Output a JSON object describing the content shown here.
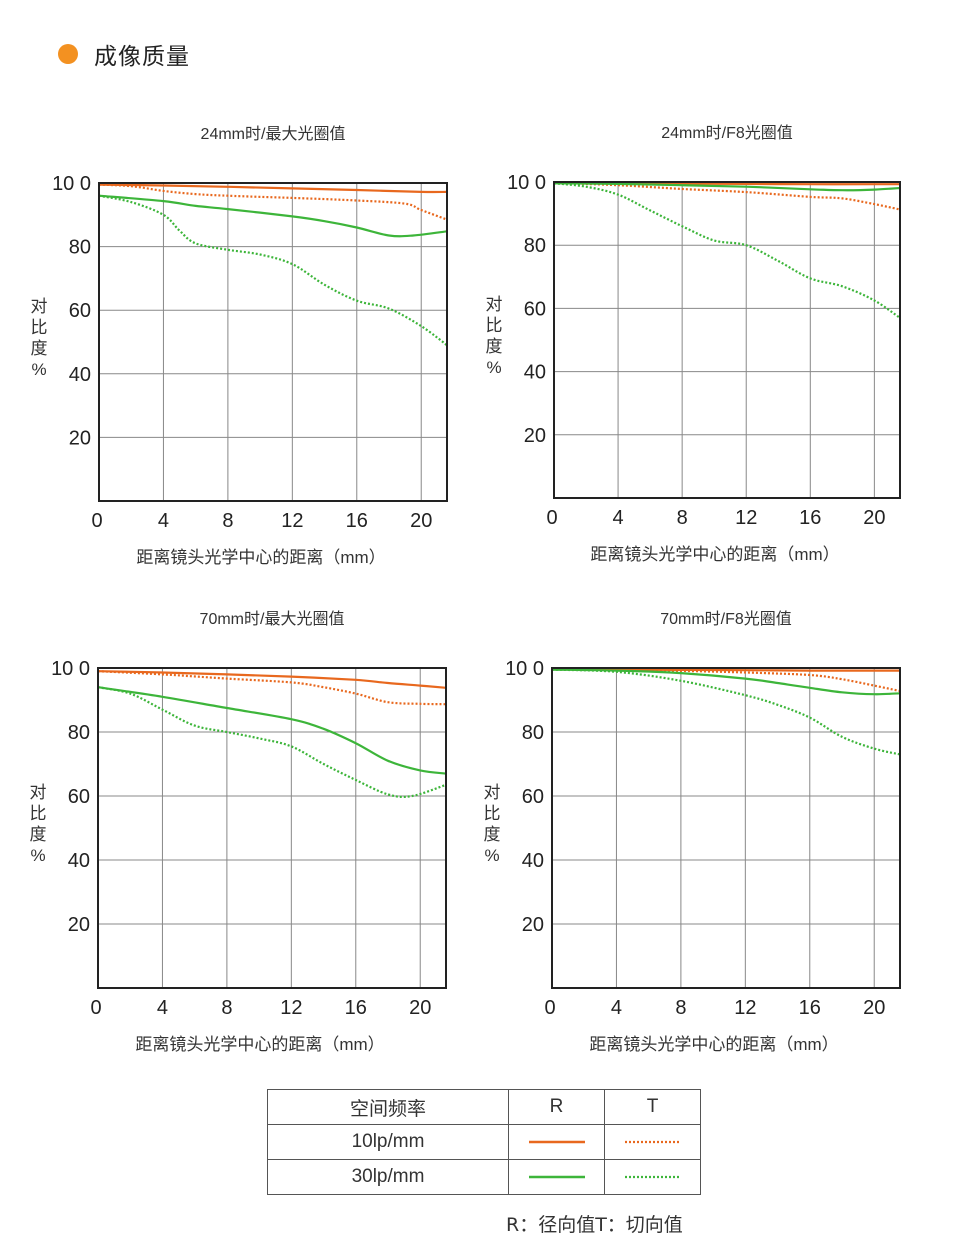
{
  "section": {
    "title": "成像质量"
  },
  "colors": {
    "dot": "#f39121",
    "line_10lp": "#e8681e",
    "line_30lp": "#3db53a",
    "grid": "#888888",
    "frame": "#222222"
  },
  "chart_data": [
    {
      "type": "line",
      "title": "24mm时/最大光圈值",
      "xlabel": "距离镜头光学中心的距离（mm）",
      "ylabel": "对比度%",
      "xlim": [
        0,
        21.6
      ],
      "ylim": [
        0,
        100
      ],
      "x_ticks": [
        0,
        4,
        8,
        12,
        16,
        20
      ],
      "y_ticks": [
        20,
        40,
        60,
        80,
        100
      ],
      "y_tick_labels": [
        "20",
        "40",
        "60",
        "80",
        "10 0"
      ],
      "grid": true,
      "series": [
        {
          "freq": "10lp/mm",
          "dir": "R",
          "points": [
            [
              0,
              99.5
            ],
            [
              4,
              99.2
            ],
            [
              8,
              98.8
            ],
            [
              12,
              98.3
            ],
            [
              16,
              97.8
            ],
            [
              20,
              97.2
            ],
            [
              21.6,
              97.2
            ]
          ]
        },
        {
          "freq": "10lp/mm",
          "dir": "T",
          "points": [
            [
              0,
              99.5
            ],
            [
              2,
              99
            ],
            [
              4,
              97.5
            ],
            [
              6,
              96.5
            ],
            [
              8,
              96
            ],
            [
              12,
              95.3
            ],
            [
              16,
              94.5
            ],
            [
              19,
              93.5
            ],
            [
              20,
              91.5
            ],
            [
              21.6,
              88.5
            ]
          ]
        },
        {
          "freq": "30lp/mm",
          "dir": "R",
          "points": [
            [
              0,
              96
            ],
            [
              4,
              94.3
            ],
            [
              6,
              92.8
            ],
            [
              8,
              91.8
            ],
            [
              12,
              89.5
            ],
            [
              14,
              88
            ],
            [
              16,
              86
            ],
            [
              18,
              83.5
            ],
            [
              19.5,
              83.5
            ],
            [
              21.6,
              84.8
            ]
          ]
        },
        {
          "freq": "30lp/mm",
          "dir": "T",
          "points": [
            [
              0,
              96
            ],
            [
              2,
              94
            ],
            [
              4,
              90
            ],
            [
              5,
              85
            ],
            [
              6,
              81
            ],
            [
              8,
              79
            ],
            [
              10,
              77.5
            ],
            [
              12,
              74.5
            ],
            [
              14,
              68
            ],
            [
              16,
              63
            ],
            [
              18,
              60.5
            ],
            [
              20,
              55
            ],
            [
              21.6,
              49
            ]
          ]
        }
      ]
    },
    {
      "type": "line",
      "title": "24mm时/F8光圈值",
      "xlabel": "距离镜头光学中心的距离（mm）",
      "ylabel": "对比度%",
      "xlim": [
        0,
        21.6
      ],
      "ylim": [
        0,
        100
      ],
      "x_ticks": [
        0,
        4,
        8,
        12,
        16,
        20
      ],
      "y_ticks": [
        20,
        40,
        60,
        80,
        100
      ],
      "y_tick_labels": [
        "20",
        "40",
        "60",
        "80",
        "10 0"
      ],
      "grid": true,
      "series": [
        {
          "freq": "10lp/mm",
          "dir": "R",
          "points": [
            [
              0,
              99.7
            ],
            [
              4,
              99.6
            ],
            [
              8,
              99.5
            ],
            [
              12,
              99.4
            ],
            [
              16,
              99.3
            ],
            [
              20,
              99.3
            ],
            [
              21.6,
              99.3
            ]
          ]
        },
        {
          "freq": "10lp/mm",
          "dir": "T",
          "points": [
            [
              0,
              99.7
            ],
            [
              4,
              99
            ],
            [
              8,
              97.8
            ],
            [
              12,
              96.8
            ],
            [
              16,
              95.3
            ],
            [
              18,
              94.8
            ],
            [
              20,
              93
            ],
            [
              21.6,
              91.3
            ]
          ]
        },
        {
          "freq": "30lp/mm",
          "dir": "R",
          "points": [
            [
              0,
              99.6
            ],
            [
              4,
              99.4
            ],
            [
              8,
              99
            ],
            [
              12,
              98.5
            ],
            [
              16,
              97.7
            ],
            [
              18,
              97.4
            ],
            [
              20,
              97.6
            ],
            [
              21.6,
              98.1
            ]
          ]
        },
        {
          "freq": "30lp/mm",
          "dir": "T",
          "points": [
            [
              0,
              99.6
            ],
            [
              2,
              98.5
            ],
            [
              4,
              96
            ],
            [
              6,
              91
            ],
            [
              8,
              86
            ],
            [
              10,
              81.5
            ],
            [
              12,
              80
            ],
            [
              14,
              75
            ],
            [
              16,
              69.5
            ],
            [
              18,
              67
            ],
            [
              20,
              62.5
            ],
            [
              21.6,
              57
            ]
          ]
        }
      ]
    },
    {
      "type": "line",
      "title": "70mm时/最大光圈值",
      "xlabel": "距离镜头光学中心的距离（mm）",
      "ylabel": "对比度%",
      "xlim": [
        0,
        21.6
      ],
      "ylim": [
        0,
        100
      ],
      "x_ticks": [
        0,
        4,
        8,
        12,
        16,
        20
      ],
      "y_ticks": [
        20,
        40,
        60,
        80,
        100
      ],
      "y_tick_labels": [
        "20",
        "40",
        "60",
        "80",
        "10 0"
      ],
      "grid": true,
      "series": [
        {
          "freq": "10lp/mm",
          "dir": "R",
          "points": [
            [
              0,
              99
            ],
            [
              4,
              98.6
            ],
            [
              8,
              98
            ],
            [
              12,
              97.3
            ],
            [
              16,
              96.3
            ],
            [
              18,
              95.3
            ],
            [
              20,
              94.5
            ],
            [
              21.6,
              93.8
            ]
          ]
        },
        {
          "freq": "10lp/mm",
          "dir": "T",
          "points": [
            [
              0,
              99
            ],
            [
              4,
              98
            ],
            [
              8,
              96.7
            ],
            [
              12,
              95.5
            ],
            [
              14,
              94
            ],
            [
              16,
              92
            ],
            [
              18,
              89.3
            ],
            [
              20,
              88.8
            ],
            [
              21.6,
              88.7
            ]
          ]
        },
        {
          "freq": "30lp/mm",
          "dir": "R",
          "points": [
            [
              0,
              94
            ],
            [
              4,
              91
            ],
            [
              8,
              87.5
            ],
            [
              12,
              84
            ],
            [
              14,
              81
            ],
            [
              16,
              76.5
            ],
            [
              18,
              71
            ],
            [
              20,
              68
            ],
            [
              21.6,
              67
            ]
          ]
        },
        {
          "freq": "30lp/mm",
          "dir": "T",
          "points": [
            [
              0,
              94
            ],
            [
              2,
              92
            ],
            [
              4,
              87
            ],
            [
              6,
              82
            ],
            [
              8,
              80
            ],
            [
              10,
              78
            ],
            [
              12,
              75.5
            ],
            [
              14,
              70
            ],
            [
              16,
              65
            ],
            [
              18,
              60.5
            ],
            [
              19.5,
              60
            ],
            [
              21.6,
              63.5
            ]
          ]
        }
      ]
    },
    {
      "type": "line",
      "title": "70mm时/F8光圈值",
      "xlabel": "距离镜头光学中心的距离（mm）",
      "ylabel": "对比度%",
      "xlim": [
        0,
        21.6
      ],
      "ylim": [
        0,
        100
      ],
      "x_ticks": [
        0,
        4,
        8,
        12,
        16,
        20
      ],
      "y_ticks": [
        20,
        40,
        60,
        80,
        100
      ],
      "y_tick_labels": [
        "20",
        "40",
        "60",
        "80",
        "10 0"
      ],
      "grid": true,
      "series": [
        {
          "freq": "10lp/mm",
          "dir": "R",
          "points": [
            [
              0,
              99.6
            ],
            [
              4,
              99.5
            ],
            [
              8,
              99.4
            ],
            [
              12,
              99.3
            ],
            [
              16,
              99.2
            ],
            [
              20,
              99.2
            ],
            [
              21.6,
              99.2
            ]
          ]
        },
        {
          "freq": "10lp/mm",
          "dir": "T",
          "points": [
            [
              0,
              99.6
            ],
            [
              4,
              99.4
            ],
            [
              8,
              99.1
            ],
            [
              12,
              98.6
            ],
            [
              16,
              97.8
            ],
            [
              18,
              96.5
            ],
            [
              20,
              94.5
            ],
            [
              21.6,
              92.8
            ]
          ]
        },
        {
          "freq": "30lp/mm",
          "dir": "R",
          "points": [
            [
              0,
              99.5
            ],
            [
              4,
              99.2
            ],
            [
              8,
              98.4
            ],
            [
              12,
              96.7
            ],
            [
              14,
              95.3
            ],
            [
              16,
              93.8
            ],
            [
              18,
              92.4
            ],
            [
              20,
              91.8
            ],
            [
              21.6,
              92.1
            ]
          ]
        },
        {
          "freq": "30lp/mm",
          "dir": "T",
          "points": [
            [
              0,
              99.5
            ],
            [
              4,
              98.8
            ],
            [
              8,
              96
            ],
            [
              12,
              91.5
            ],
            [
              14,
              88.5
            ],
            [
              16,
              84.5
            ],
            [
              18,
              78.5
            ],
            [
              20,
              74.8
            ],
            [
              21.6,
              73
            ]
          ]
        }
      ]
    }
  ],
  "legend": {
    "header": [
      "空间频率",
      "R",
      "T"
    ],
    "rows": [
      {
        "label": "10lp/mm"
      },
      {
        "label": "30lp/mm"
      }
    ]
  },
  "footnote": "R：径向值T：切向值"
}
